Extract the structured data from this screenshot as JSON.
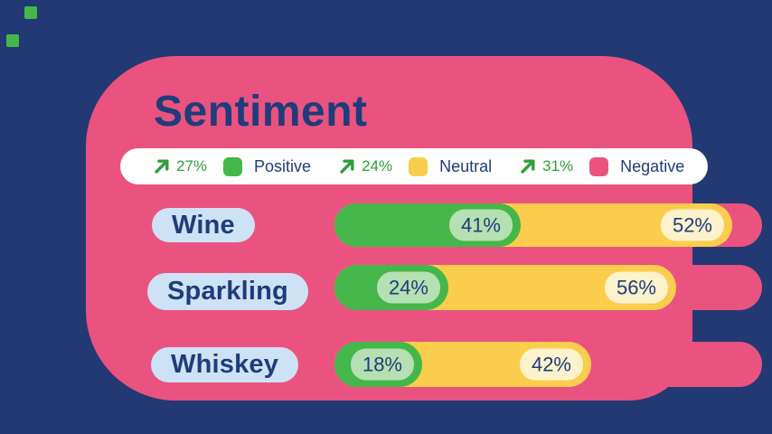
{
  "title": "Sentiment",
  "palette": {
    "bg": "#223973",
    "card": "#EA5380",
    "green": "#45B649",
    "green-dark": "#2F9E3B",
    "light-green": "#B5E0B2",
    "yellow": "#FACD4C",
    "light-yellow": "#FCF2CC",
    "light-blue": "#CEE2F5",
    "navy": "#1F3C7B",
    "white": "#FFFFFF"
  },
  "legend": {
    "items": [
      {
        "delta": "27%",
        "label": "Positive",
        "swatch": "#45B649"
      },
      {
        "delta": "24%",
        "label": "Neutral",
        "swatch": "#FACD4C"
      },
      {
        "delta": "31%",
        "label": "Negative",
        "swatch": "#EA5380"
      }
    ]
  },
  "rows": [
    {
      "label": "Wine",
      "positive": 41,
      "neutral": 52,
      "positive_label": "41%",
      "neutral_label": "52%"
    },
    {
      "label": "Sparkling",
      "positive": 24,
      "neutral": 56,
      "positive_label": "24%",
      "neutral_label": "56%"
    },
    {
      "label": "Whiskey",
      "positive": 18,
      "neutral": 42,
      "positive_label": "18%",
      "neutral_label": "42%"
    }
  ],
  "chart_data": {
    "type": "bar",
    "orientation": "horizontal",
    "stacked": true,
    "title": "Sentiment",
    "categories": [
      "Wine",
      "Sparkling",
      "Whiskey"
    ],
    "series": [
      {
        "name": "Positive",
        "values": [
          41,
          24,
          18
        ],
        "color": "#45B649"
      },
      {
        "name": "Neutral",
        "values": [
          52,
          56,
          42
        ],
        "color": "#FACD4C"
      },
      {
        "name": "Negative",
        "values": [
          7,
          20,
          40
        ],
        "color": "#EA5380",
        "note": "remainder to 100%, shown as pink base bar, no numeric label visible"
      }
    ],
    "value_labels": {
      "Positive": [
        "41%",
        "24%",
        "18%"
      ],
      "Neutral": [
        "52%",
        "56%",
        "42%"
      ]
    },
    "legend_deltas": {
      "Positive": "27%",
      "Neutral": "24%",
      "Negative": "31%"
    },
    "x_range": [
      0,
      100
    ],
    "grid": false,
    "legend_position": "top"
  }
}
